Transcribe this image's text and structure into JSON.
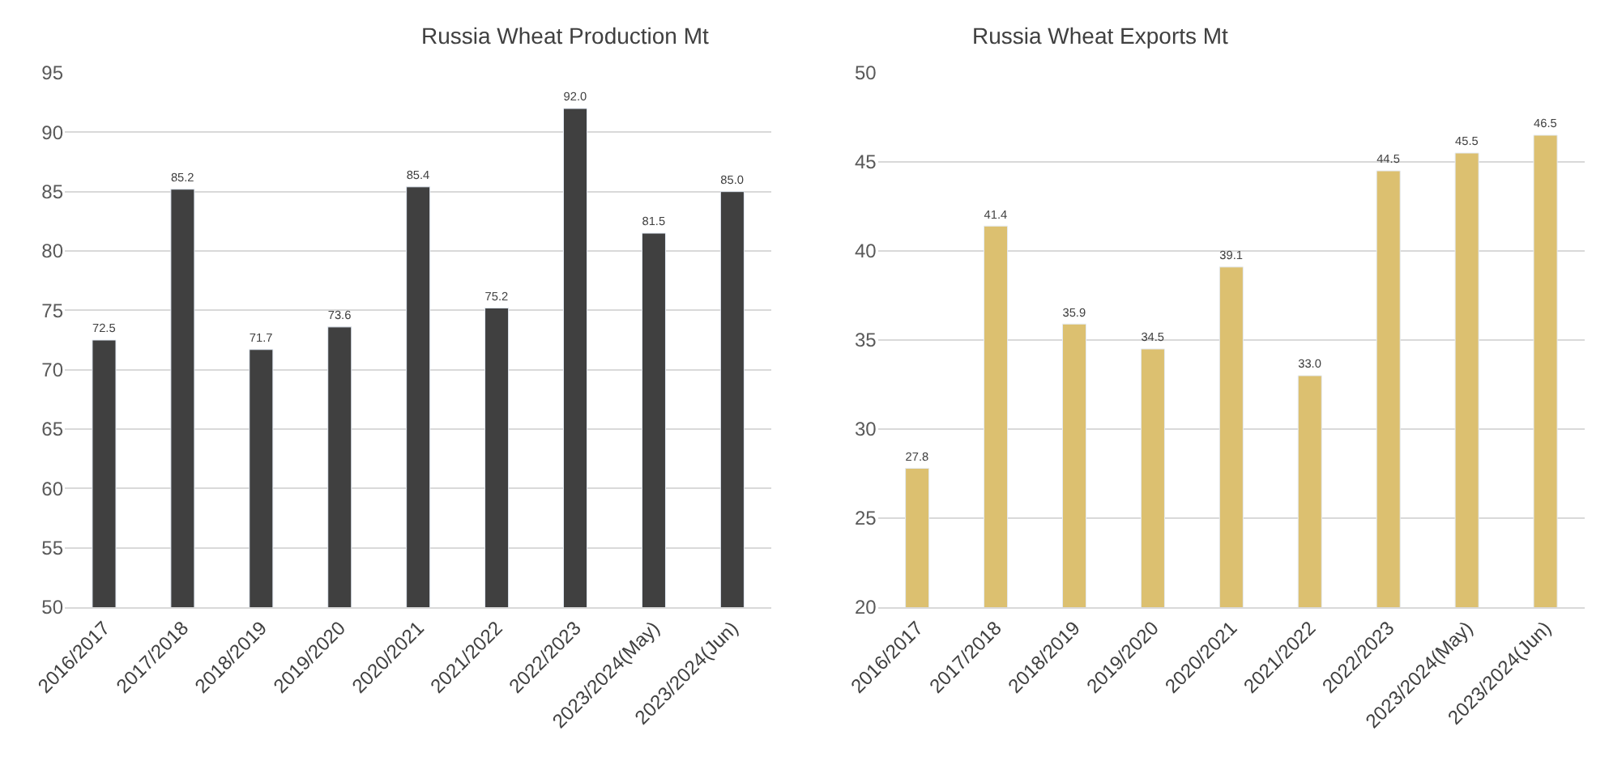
{
  "chart_data": [
    {
      "type": "bar",
      "title": "Russia Wheat Production Mt",
      "categories": [
        "2016/2017",
        "2017/2018",
        "2018/2019",
        "2019/2020",
        "2020/2021",
        "2021/2022",
        "2022/2023",
        "2023/2024(May)",
        "2023/2024(Jun)"
      ],
      "values": [
        72.5,
        85.2,
        71.7,
        73.6,
        85.4,
        75.2,
        92.0,
        81.5,
        85.0
      ],
      "color": "#404040",
      "ylim": [
        50,
        95
      ],
      "yticks": [
        50,
        55,
        60,
        65,
        70,
        75,
        80,
        85,
        90,
        95
      ],
      "grid": "y",
      "data_labels": true,
      "value_labels": [
        "72.5",
        "85.2",
        "71.7",
        "73.6",
        "85.4",
        "75.2",
        "92.0",
        "81.5",
        "85.0"
      ]
    },
    {
      "type": "bar",
      "title": "Russia Wheat Exports Mt",
      "categories": [
        "2016/2017",
        "2017/2018",
        "2018/2019",
        "2019/2020",
        "2020/2021",
        "2021/2022",
        "2022/2023",
        "2023/2024(May)",
        "2023/2024(Jun)"
      ],
      "values": [
        27.8,
        41.4,
        35.9,
        34.5,
        39.1,
        33.0,
        44.5,
        45.5,
        46.5
      ],
      "color": "#dcc070",
      "ylim": [
        20,
        50
      ],
      "yticks": [
        20,
        25,
        30,
        35,
        40,
        45,
        50
      ],
      "grid": "y",
      "data_labels": true,
      "value_labels": [
        "27.8",
        "41.4",
        "35.9",
        "34.5",
        "39.1",
        "33.0",
        "44.5",
        "45.5",
        "46.5"
      ]
    }
  ]
}
